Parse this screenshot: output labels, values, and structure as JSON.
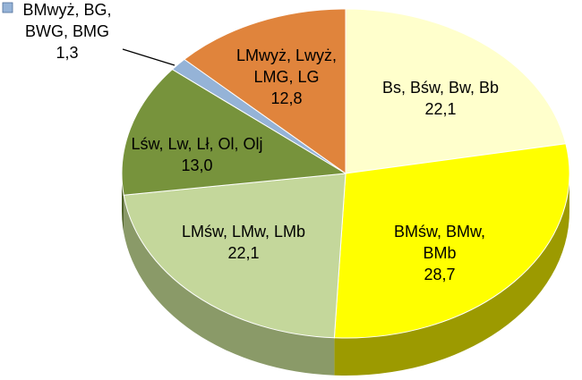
{
  "chart_data": {
    "type": "pie",
    "style": "3d",
    "title": "",
    "legend_position": "top-left",
    "slices": [
      {
        "lines": [
          "Bs, Bśw, Bw, Bb"
        ],
        "value": 22.1,
        "value_label": "22,1",
        "color": "#FFFFCC",
        "side_color": "#CCCC9A"
      },
      {
        "lines": [
          "BMśw, BMw,",
          "BMb"
        ],
        "value": 28.7,
        "value_label": "28,7",
        "color": "#FFFF00",
        "side_color": "#9C9A00"
      },
      {
        "lines": [
          "LMśw, LMw, LMb"
        ],
        "value": 22.1,
        "value_label": "22,1",
        "color": "#C4D79B",
        "side_color": "#8A9A68"
      },
      {
        "lines": [
          "Lśw, Lw, Lł, Ol, Olj"
        ],
        "value": 13.0,
        "value_label": "13,0",
        "color": "#77933C",
        "side_color": "#4F6228"
      },
      {
        "lines": [
          "BMwyż, BG,",
          "BWG, BMG"
        ],
        "value": 1.3,
        "value_label": "1,3",
        "color": "#95B3D7",
        "side_color": "#6A84A6"
      },
      {
        "lines": [
          "LMwyż, Lwyż,",
          "LMG, LG"
        ],
        "value": 12.8,
        "value_label": "12,8",
        "color": "#E0843C",
        "side_color": "#A35B24"
      }
    ]
  }
}
